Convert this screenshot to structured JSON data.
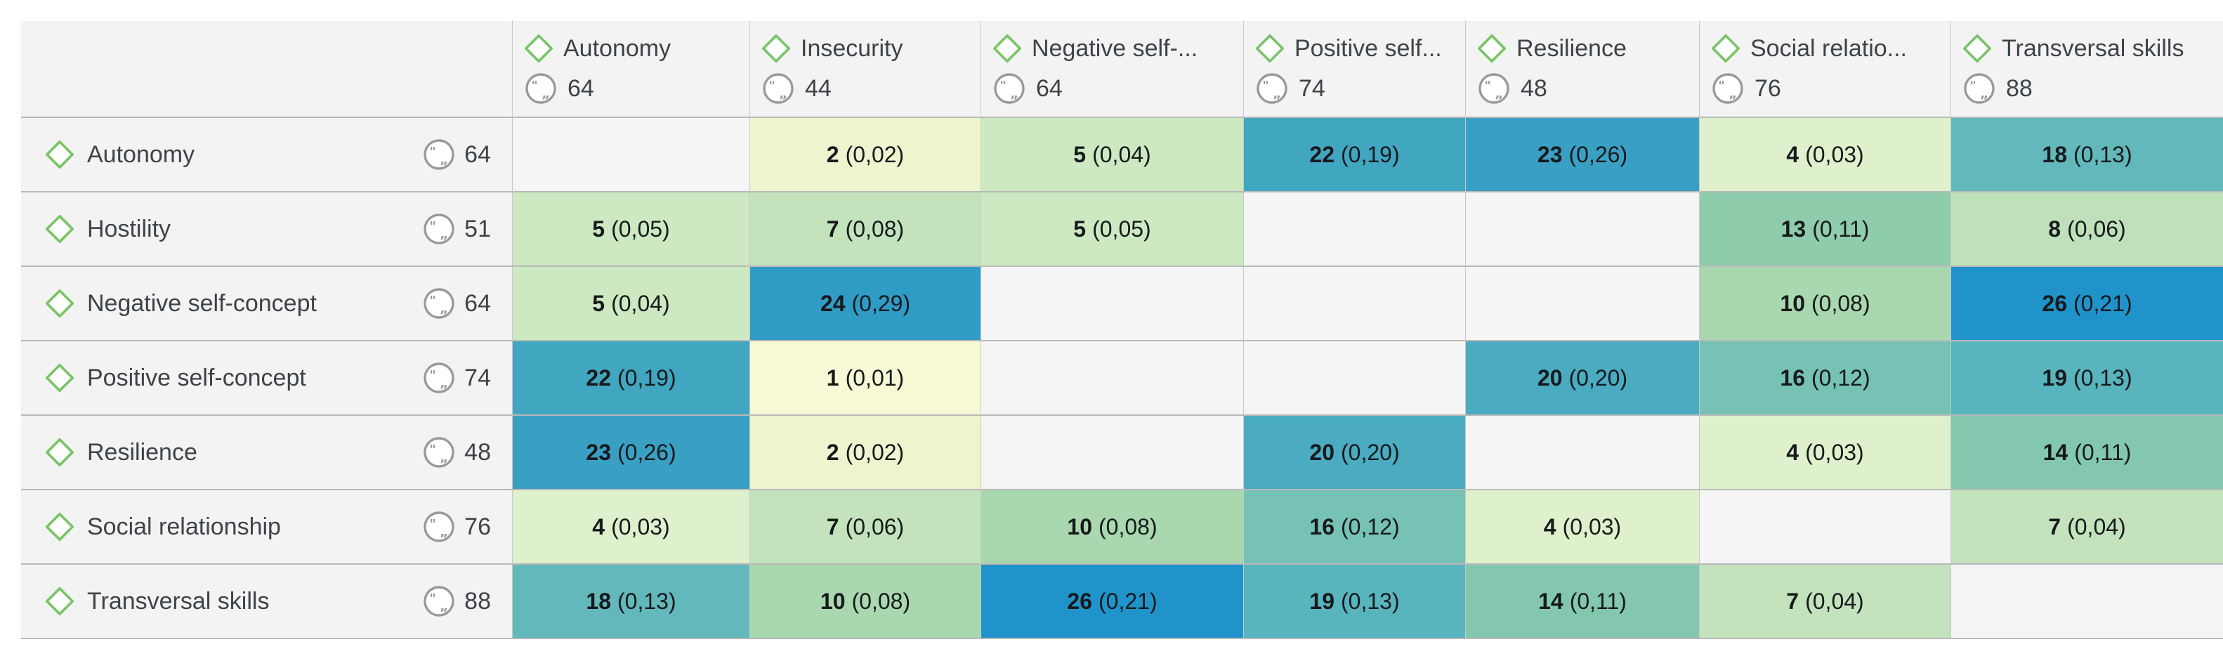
{
  "colors": {
    "page_bg": "#ffffff",
    "header_bg": "#f3f3f3",
    "empty_cell_bg": "#f5f5f5",
    "grid_v": "#c9c9c9",
    "grid_h": "#b9b9b9",
    "diamond_stroke": "#79c467",
    "circle_stroke": "#9a9a9a",
    "label_text": "#3d4349",
    "cell_text": "#17191c"
  },
  "icons": {
    "code_icon": "green-diamond-code-icon",
    "count_icon": "quote-circle-coded-segments-icon"
  },
  "chart_data": {
    "type": "heatmap",
    "cell_value_format": "count (relative)",
    "columns": [
      {
        "label": "Autonomy",
        "count": "64"
      },
      {
        "label": "Insecurity",
        "count": "44"
      },
      {
        "label": "Negative self-...",
        "count": "64"
      },
      {
        "label": "Positive self...",
        "count": "74"
      },
      {
        "label": "Resilience",
        "count": "48"
      },
      {
        "label": "Social relatio...",
        "count": "76"
      },
      {
        "label": "Transversal skills",
        "count": "88"
      }
    ],
    "rows": [
      {
        "label": "Autonomy",
        "count": "64",
        "cells": [
          "",
          "2 (0,02)",
          "5 (0,04)",
          "22 (0,19)",
          "23 (0,26)",
          "4 (0,03)",
          "18 (0,13)"
        ]
      },
      {
        "label": "Hostility",
        "count": "51",
        "cells": [
          "5 (0,05)",
          "7 (0,08)",
          "5 (0,05)",
          "",
          "",
          "13 (0,11)",
          "8 (0,06)"
        ]
      },
      {
        "label": "Negative self-concept",
        "count": "64",
        "cells": [
          "5 (0,04)",
          "24 (0,29)",
          "",
          "",
          "",
          "10 (0,08)",
          "26 (0,21)"
        ]
      },
      {
        "label": "Positive self-concept",
        "count": "74",
        "cells": [
          "22 (0,19)",
          "1 (0,01)",
          "",
          "",
          "20 (0,20)",
          "16 (0,12)",
          "19 (0,13)"
        ]
      },
      {
        "label": "Resilience",
        "count": "48",
        "cells": [
          "23 (0,26)",
          "2 (0,02)",
          "",
          "20 (0,20)",
          "",
          "4 (0,03)",
          "14 (0,11)"
        ]
      },
      {
        "label": "Social relationship",
        "count": "76",
        "cells": [
          "4 (0,03)",
          "7 (0,06)",
          "10 (0,08)",
          "16 (0,12)",
          "4 (0,03)",
          "",
          "7 (0,04)"
        ]
      },
      {
        "label": "Transversal skills",
        "count": "88",
        "cells": [
          "18 (0,13)",
          "10 (0,08)",
          "26 (0,21)",
          "19 (0,13)",
          "14 (0,11)",
          "7 (0,04)",
          ""
        ]
      }
    ],
    "cell_colors_by_count": {
      "1": "#f7f9d6",
      "2": "#edf5cf",
      "4": "#dff0cc",
      "5": "#cde9c2",
      "7": "#c2e3bc",
      "8": "#bee1ba",
      "10": "#a9d8ae",
      "13": "#8fccab",
      "14": "#83c7ae",
      "16": "#76c2b4",
      "18": "#62b8bb",
      "19": "#58b4bd",
      "20": "#4aabc1",
      "22": "#41a6c0",
      "23": "#3aa0c3",
      "24": "#2f9cc5",
      "26": "#2093cb"
    }
  }
}
